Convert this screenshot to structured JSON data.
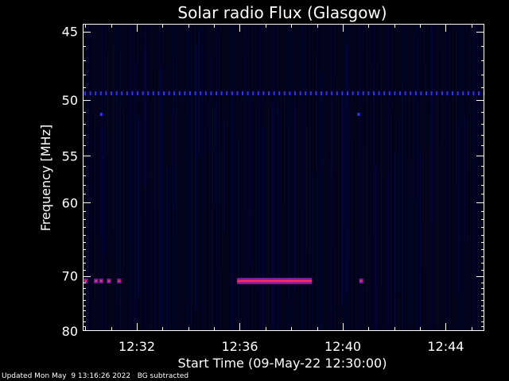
{
  "chart_data": {
    "type": "heatmap",
    "title": "Solar radio Flux (Glasgow)",
    "xlabel": "Start Time (09-May-22 12:30:00)",
    "ylabel": "Frequency [MHz]",
    "x_unit": "minutes after 12:00",
    "xlim": [
      29.9,
      45.5
    ],
    "ylim": [
      44.5,
      80
    ],
    "y_scale": "reciprocal",
    "x_ticks": [
      {
        "value": 32,
        "label": "12:32"
      },
      {
        "value": 36,
        "label": "12:36"
      },
      {
        "value": 40,
        "label": "12:40"
      },
      {
        "value": 44,
        "label": "12:44"
      }
    ],
    "y_ticks": [
      {
        "value": 45,
        "label": "45"
      },
      {
        "value": 50,
        "label": "50"
      },
      {
        "value": 55,
        "label": "55"
      },
      {
        "value": 60,
        "label": "60"
      },
      {
        "value": 70,
        "label": "70"
      },
      {
        "value": 80,
        "label": "80"
      }
    ],
    "colors": {
      "background": "#000000",
      "axes": "#ffffff",
      "plot_bg": "#02031a",
      "faint": "#0a0a6a",
      "dots": "#3030ff",
      "band_outer": "#7a1aa0",
      "band_core": "#ff2a5a"
    },
    "features": [
      {
        "kind": "dotted-line",
        "freq_mhz": 49.5,
        "x_start": 29.9,
        "x_end": 45.5,
        "intensity": "low"
      },
      {
        "kind": "dot",
        "freq_mhz": 51.2,
        "x": 30.6,
        "intensity": "low"
      },
      {
        "kind": "dot",
        "freq_mhz": 51.2,
        "x": 40.6,
        "intensity": "low"
      },
      {
        "kind": "band",
        "freq_mhz": 70.8,
        "x_start": 35.9,
        "x_end": 38.8,
        "intensity": "high"
      },
      {
        "kind": "dot",
        "freq_mhz": 70.8,
        "x": 30.0,
        "intensity": "high"
      },
      {
        "kind": "dot",
        "freq_mhz": 70.8,
        "x": 30.4,
        "intensity": "high"
      },
      {
        "kind": "dot",
        "freq_mhz": 70.8,
        "x": 30.6,
        "intensity": "high"
      },
      {
        "kind": "dot",
        "freq_mhz": 70.8,
        "x": 30.9,
        "intensity": "high"
      },
      {
        "kind": "dot",
        "freq_mhz": 70.8,
        "x": 31.3,
        "intensity": "high"
      },
      {
        "kind": "dot",
        "freq_mhz": 70.8,
        "x": 40.7,
        "intensity": "high"
      }
    ]
  },
  "footer": {
    "updated": "Updated Mon May  9 13:16:26 2022   BG subtracted"
  }
}
